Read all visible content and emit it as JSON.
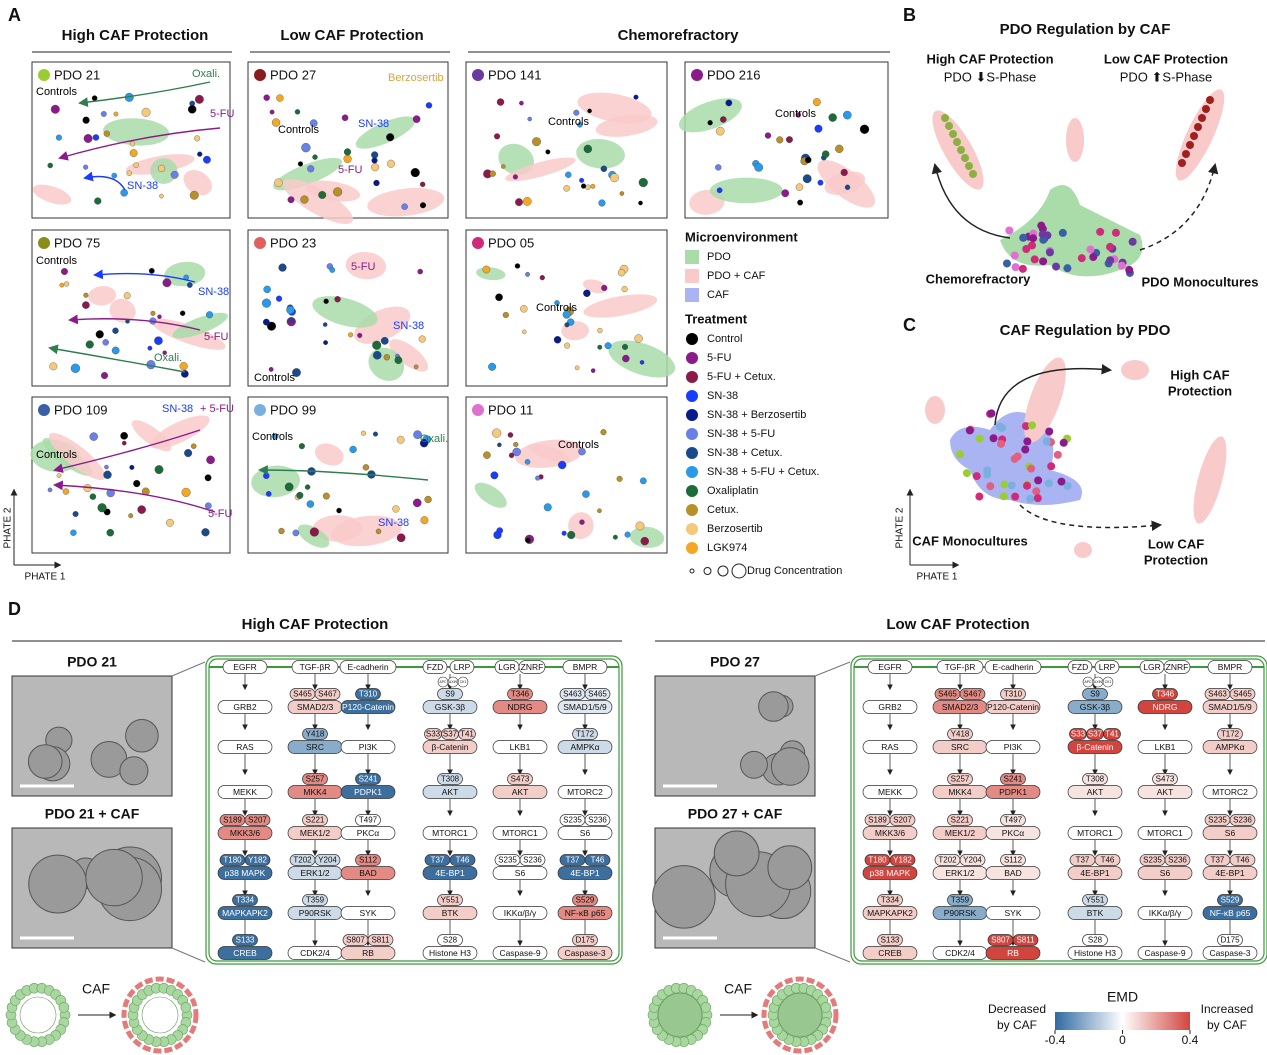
{
  "panel_a": {
    "letter": "A",
    "headers": [
      "High CAF Protection",
      "Low CAF Protection",
      "Chemorefractory"
    ],
    "panels": [
      {
        "label": "PDO 21",
        "color": "#9acd32",
        "annotations": [
          {
            "text": "Oxali.",
            "color": "#2e7d4f"
          },
          {
            "text": "Controls",
            "color": "#000000"
          },
          {
            "text": "5-FU",
            "color": "#8b1a8b"
          },
          {
            "text": "SN-38",
            "color": "#1a3cff"
          }
        ]
      },
      {
        "label": "PDO 27",
        "color": "#8b1a1a",
        "annotations": [
          {
            "text": "Berzosertib",
            "color": "#d9a441"
          },
          {
            "text": "Controls",
            "color": "#000000"
          },
          {
            "text": "SN-38",
            "color": "#1a3cff"
          },
          {
            "text": "5-FU",
            "color": "#8b1a8b"
          }
        ]
      },
      {
        "label": "PDO 141",
        "color": "#6a3aa0",
        "annotations": [
          {
            "text": "Controls",
            "color": "#000000"
          }
        ]
      },
      {
        "label": "PDO 216",
        "color": "#8b1a8b",
        "annotations": [
          {
            "text": "Controls",
            "color": "#000000"
          }
        ]
      },
      {
        "label": "PDO 75",
        "color": "#8b8b1a",
        "annotations": [
          {
            "text": "Controls",
            "color": "#000000"
          },
          {
            "text": "SN-38",
            "color": "#1a3cff"
          },
          {
            "text": "5-FU",
            "color": "#8b1a8b"
          },
          {
            "text": "Oxali.",
            "color": "#2e7d4f"
          }
        ]
      },
      {
        "label": "PDO 23",
        "color": "#e06060",
        "annotations": [
          {
            "text": "5-FU",
            "color": "#8b1a8b"
          },
          {
            "text": "SN-38",
            "color": "#1a3cff"
          },
          {
            "text": "Controls",
            "color": "#000000"
          }
        ]
      },
      {
        "label": "PDO 05",
        "color": "#d02a7a",
        "annotations": [
          {
            "text": "Controls",
            "color": "#000000"
          }
        ]
      },
      {
        "label": "PDO 109",
        "color": "#3a5fa8",
        "annotations": [
          {
            "text": "SN-38",
            "color": "#1a3cff"
          },
          {
            "text": "+ 5-FU",
            "color": "#8b1a8b"
          },
          {
            "text": "Controls",
            "color": "#000000"
          },
          {
            "text": "5-FU",
            "color": "#8b1a8b"
          }
        ]
      },
      {
        "label": "PDO 99",
        "color": "#7ab0e0",
        "annotations": [
          {
            "text": "Controls",
            "color": "#000000"
          },
          {
            "text": "Oxali.",
            "color": "#2e7d4f"
          },
          {
            "text": "SN-38",
            "color": "#1a3cff"
          }
        ]
      },
      {
        "label": "PDO 11",
        "color": "#e070d0",
        "annotations": [
          {
            "text": "Controls",
            "color": "#000000"
          }
        ]
      }
    ],
    "axis_y": "PHATE 2",
    "axis_x": "PHATE 1",
    "legend": {
      "micro_title": "Microenvironment",
      "micro": [
        {
          "name": "PDO",
          "color": "#a9dca9"
        },
        {
          "name": "PDO + CAF",
          "color": "#f9caca"
        },
        {
          "name": "CAF",
          "color": "#aab4f2"
        }
      ],
      "treat_title": "Treatment",
      "treatments": [
        {
          "name": "Control",
          "color": "#000000"
        },
        {
          "name": "5-FU",
          "color": "#8b1a8b"
        },
        {
          "name": "5-FU + Cetux.",
          "color": "#8b1a4a"
        },
        {
          "name": "SN-38",
          "color": "#1a3cff"
        },
        {
          "name": "SN-38 + Berzosertib",
          "color": "#0a1a8b"
        },
        {
          "name": "SN-38 + 5-FU",
          "color": "#6a80e8"
        },
        {
          "name": "SN-38 + Cetux.",
          "color": "#1a4a8b"
        },
        {
          "name": "SN-38 + 5-FU + Cetux.",
          "color": "#2a9ae8"
        },
        {
          "name": "Oxaliplatin",
          "color": "#1e6b3a"
        },
        {
          "name": "Cetux.",
          "color": "#b8902a"
        },
        {
          "name": "Berzosertib",
          "color": "#f5c87a"
        },
        {
          "name": "LGK974",
          "color": "#f5a623"
        }
      ],
      "size_label": "Drug Concentration"
    }
  },
  "panel_b": {
    "letter": "B",
    "title": "PDO Regulation by CAF",
    "high": "High CAF Protection",
    "high_sub": "PDO ⬇S-Phase",
    "low": "Low CAF Protection",
    "low_sub": "PDO ⬆S-Phase",
    "chemo": "Chemorefractory",
    "mono": "PDO Monocultures"
  },
  "panel_c": {
    "letter": "C",
    "title": "CAF Regulation by PDO",
    "high": [
      "High CAF",
      "Protection"
    ],
    "low": [
      "Low CAF",
      "Protection"
    ],
    "mono": "CAF Monocultures",
    "axis_y": "PHATE 2",
    "axis_x": "PHATE 1"
  },
  "panel_d": {
    "letter": "D",
    "high_title": "High CAF Protection",
    "low_title": "Low CAF Protection",
    "high_images": [
      "PDO 21",
      "PDO 21 + CAF"
    ],
    "low_images": [
      "PDO 27",
      "PDO 27 + CAF"
    ],
    "caf": "CAF",
    "complex": [
      "APC",
      "AXIN",
      "CK1"
    ],
    "nodes": [
      {
        "name": "EGFR",
        "sites": [],
        "high": "#ffffff",
        "low": "#ffffff"
      },
      {
        "name": "TGF-βR",
        "sites": [],
        "high": "#ffffff",
        "low": "#ffffff"
      },
      {
        "name": "E-cadherin",
        "sites": [],
        "high": "#ffffff",
        "low": "#ffffff"
      },
      {
        "name": "FZD",
        "sites": [],
        "high": "#ffffff",
        "low": "#ffffff"
      },
      {
        "name": "LRP",
        "sites": [],
        "high": "#ffffff",
        "low": "#ffffff"
      },
      {
        "name": "LGR",
        "sites": [],
        "high": "#ffffff",
        "low": "#ffffff"
      },
      {
        "name": "ZNRF",
        "sites": [],
        "high": "#ffffff",
        "low": "#ffffff"
      },
      {
        "name": "BMPR",
        "sites": [],
        "high": "#ffffff",
        "low": "#ffffff"
      },
      {
        "name": "GRB2",
        "sites": [],
        "high": "#ffffff",
        "low": "#ffffff"
      },
      {
        "name": "SMAD2/3",
        "sites": [
          "S465",
          "S467"
        ],
        "high": "#f3cdc8",
        "low": "#e38a84"
      },
      {
        "name": "P120-Catenin",
        "sites": [
          "T310"
        ],
        "high": "#3d6f9e",
        "low": "#f3cdc8"
      },
      {
        "name": "GSK-3β",
        "sites": [
          "S9"
        ],
        "high": "#cddbe8",
        "low": "#8aaccb"
      },
      {
        "name": "NDRG",
        "sites": [
          "T346"
        ],
        "high": "#e38a84",
        "low": "#d2453f"
      },
      {
        "name": "SMAD1/5/9",
        "sites": [
          "S463",
          "S465"
        ],
        "high": "#dfe8f0",
        "low": "#f3cdc8"
      },
      {
        "name": "RAS",
        "sites": [],
        "high": "#ffffff",
        "low": "#ffffff"
      },
      {
        "name": "SRC",
        "sites": [
          "Y418"
        ],
        "high": "#8aaccb",
        "low": "#f3cdc8"
      },
      {
        "name": "PI3K",
        "sites": [],
        "high": "#ffffff",
        "low": "#ffffff"
      },
      {
        "name": "β-Catenin",
        "sites": [
          "S33",
          "S37",
          "T41"
        ],
        "high": "#f3cdc8",
        "low": "#d2453f"
      },
      {
        "name": "LKB1",
        "sites": [],
        "high": "#ffffff",
        "low": "#ffffff"
      },
      {
        "name": "AMPKα",
        "sites": [
          "T172"
        ],
        "high": "#cddbe8",
        "low": "#f3cdc8"
      },
      {
        "name": "MEKK",
        "sites": [],
        "high": "#ffffff",
        "low": "#ffffff"
      },
      {
        "name": "MKK4",
        "sites": [
          "S257"
        ],
        "high": "#e38a84",
        "low": "#f3cdc8"
      },
      {
        "name": "PDPK1",
        "sites": [
          "S241"
        ],
        "high": "#3d6f9e",
        "low": "#e38a84"
      },
      {
        "name": "AKT",
        "sites": [
          "T308"
        ],
        "high": "#cddbe8",
        "low": "#f7e3e0"
      },
      {
        "name": "AKT",
        "sites": [
          "S473"
        ],
        "high": "#f3cdc8",
        "low": "#f7e3e0"
      },
      {
        "name": "MTORC2",
        "sites": [],
        "high": "#ffffff",
        "low": "#ffffff"
      },
      {
        "name": "MKK3/6",
        "sites": [
          "S189",
          "S207"
        ],
        "high": "#e38a84",
        "low": "#f3cdc8"
      },
      {
        "name": "MEK1/2",
        "sites": [
          "S221"
        ],
        "high": "#f3cdc8",
        "low": "#f3cdc8"
      },
      {
        "name": "PKCα",
        "sites": [
          "T497"
        ],
        "high": "#ffffff",
        "low": "#f7e3e0"
      },
      {
        "name": "MTORC1",
        "sites": [],
        "high": "#ffffff",
        "low": "#ffffff"
      },
      {
        "name": "MTORC1",
        "sites": [],
        "high": "#ffffff",
        "low": "#ffffff"
      },
      {
        "name": "S6",
        "sites": [
          "S235",
          "S236"
        ],
        "high": "#ffffff",
        "low": "#f3cdc8"
      },
      {
        "name": "p38 MAPK",
        "sites": [
          "T180",
          "Y182"
        ],
        "high": "#3d6f9e",
        "low": "#d2453f"
      },
      {
        "name": "ERK1/2",
        "sites": [
          "T202",
          "Y204"
        ],
        "high": "#cddbe8",
        "low": "#f7e3e0"
      },
      {
        "name": "BAD",
        "sites": [
          "S112"
        ],
        "high": "#e38a84",
        "low": "#f7e3e0"
      },
      {
        "name": "4E-BP1",
        "sites": [
          "T37",
          "T46"
        ],
        "high": "#3d6f9e",
        "low": "#f3cdc8"
      },
      {
        "name": "S6",
        "sites": [
          "S235",
          "S236"
        ],
        "high": "#ffffff",
        "low": "#f3cdc8"
      },
      {
        "name": "4E-BP1",
        "sites": [
          "T37",
          "T46"
        ],
        "high": "#3d6f9e",
        "low": "#f3cdc8"
      },
      {
        "name": "MAPKAPK2",
        "sites": [
          "T334"
        ],
        "high": "#3d6f9e",
        "low": "#f3cdc8"
      },
      {
        "name": "P90RSK",
        "sites": [
          "T359"
        ],
        "high": "#cddbe8",
        "low": "#8aaccb"
      },
      {
        "name": "SYK",
        "sites": [],
        "high": "#ffffff",
        "low": "#ffffff"
      },
      {
        "name": "BTK",
        "sites": [
          "Y551"
        ],
        "high": "#f3cdc8",
        "low": "#cddbe8"
      },
      {
        "name": "IKKα/β/γ",
        "sites": [],
        "high": "#ffffff",
        "low": "#ffffff"
      },
      {
        "name": "NF-κB p65",
        "sites": [
          "S529"
        ],
        "high": "#e38a84",
        "low": "#3d6f9e"
      },
      {
        "name": "CREB",
        "sites": [
          "S133"
        ],
        "high": "#3d6f9e",
        "low": "#f3cdc8"
      },
      {
        "name": "CDK2/4",
        "sites": [],
        "high": "#ffffff",
        "low": "#ffffff"
      },
      {
        "name": "RB",
        "sites": [
          "S807",
          "S811"
        ],
        "high": "#f3cdc8",
        "low": "#d2453f"
      },
      {
        "name": "Histone H3",
        "sites": [
          "S28"
        ],
        "high": "#ffffff",
        "low": "#ffffff"
      },
      {
        "name": "Caspase-9",
        "sites": [],
        "high": "#ffffff",
        "low": "#ffffff"
      },
      {
        "name": "Caspase-3",
        "sites": [
          "D175"
        ],
        "high": "#f3cdc8",
        "low": "#ffffff"
      }
    ],
    "colorbar": {
      "title": "EMD",
      "lim": [
        -0.4,
        0.4
      ],
      "ticks": [
        -0.4,
        0,
        0.4
      ],
      "colors": [
        "#2f6aa3",
        "#ffffff",
        "#d2453f"
      ],
      "decreased": [
        "Decreased",
        "by CAF"
      ],
      "increased": [
        "Increased",
        "by CAF"
      ]
    }
  }
}
